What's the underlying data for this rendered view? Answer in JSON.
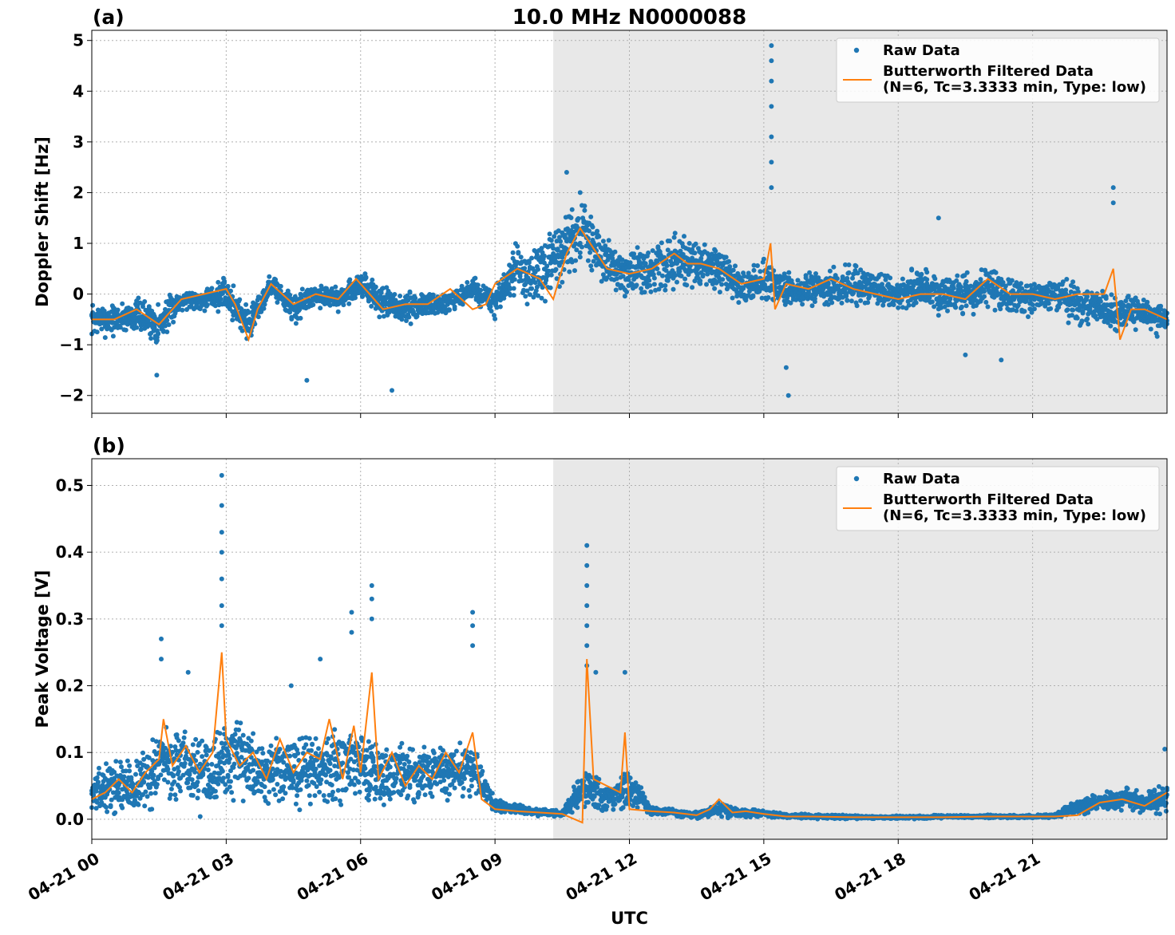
{
  "figure": {
    "title": "10.0 MHz N0000088",
    "xlabel": "UTC",
    "x_ticks": [
      "04-21 00",
      "04-21 03",
      "04-21 06",
      "04-21 09",
      "04-21 12",
      "04-21 15",
      "04-21 18",
      "04-21 21"
    ]
  },
  "colors": {
    "raw": "#1f77b4",
    "filtered": "#ff7f0e",
    "shade": "#e8e8e8"
  },
  "chart_data": [
    {
      "type": "scatter",
      "panel": "(a)",
      "ylabel": "Doppler Shift [Hz]",
      "xlim_hours": [
        0,
        24
      ],
      "ylim": [
        -2.35,
        5.2
      ],
      "yticks": [
        -2,
        -1,
        0,
        1,
        2,
        3,
        4,
        5
      ],
      "ytick_labels": [
        "−2",
        "−1",
        "0",
        "1",
        "2",
        "3",
        "4",
        "5"
      ],
      "shaded_region_hours": [
        10.3,
        24
      ],
      "grid": true,
      "legend_position": "top-right",
      "series": [
        {
          "name": "Raw Data",
          "kind": "points",
          "x": [
            0,
            0.5,
            1.0,
            1.5,
            2.0,
            2.5,
            3.0,
            3.5,
            4.0,
            4.5,
            5.0,
            5.5,
            6.0,
            6.5,
            7.0,
            7.5,
            8.0,
            8.5,
            9.0,
            9.5,
            10.0,
            10.5,
            11.0,
            11.5,
            12.0,
            12.5,
            13.0,
            13.5,
            14.0,
            14.5,
            15.0,
            15.5,
            16.0,
            16.5,
            17.0,
            17.5,
            18.0,
            18.5,
            19.0,
            19.5,
            20.0,
            20.5,
            21.0,
            21.5,
            22.0,
            22.5,
            23.0,
            23.5,
            24.0
          ],
          "y_center": [
            -0.5,
            -0.5,
            -0.4,
            -0.6,
            -0.1,
            -0.1,
            0.0,
            -0.6,
            0.2,
            -0.3,
            0.0,
            -0.1,
            0.2,
            -0.2,
            -0.3,
            -0.2,
            -0.2,
            0.1,
            -0.2,
            0.5,
            0.3,
            0.9,
            1.2,
            0.6,
            0.4,
            0.5,
            0.6,
            0.6,
            0.5,
            0.1,
            0.3,
            0.1,
            0.1,
            0.1,
            0.2,
            0.1,
            0.0,
            0.1,
            0.0,
            0.0,
            0.1,
            0.0,
            -0.1,
            0.0,
            -0.2,
            -0.3,
            -0.4,
            -0.4,
            -0.5
          ],
          "y_spread": [
            0.3,
            0.3,
            0.3,
            0.4,
            0.2,
            0.2,
            0.3,
            0.4,
            0.2,
            0.3,
            0.2,
            0.2,
            0.3,
            0.3,
            0.3,
            0.3,
            0.2,
            0.2,
            0.3,
            0.5,
            0.6,
            0.6,
            0.6,
            0.4,
            0.4,
            0.5,
            0.5,
            0.5,
            0.4,
            0.3,
            0.4,
            0.3,
            0.3,
            0.4,
            0.4,
            0.3,
            0.3,
            0.4,
            0.4,
            0.4,
            0.4,
            0.4,
            0.3,
            0.3,
            0.4,
            0.3,
            0.3,
            0.3,
            0.3
          ],
          "outliers": [
            [
              15.17,
              4.9
            ],
            [
              15.17,
              4.6
            ],
            [
              15.17,
              4.2
            ],
            [
              15.17,
              3.7
            ],
            [
              15.17,
              3.1
            ],
            [
              15.17,
              2.6
            ],
            [
              15.17,
              2.1
            ],
            [
              15.55,
              -2.0
            ],
            [
              15.5,
              -1.45
            ],
            [
              22.8,
              2.1
            ],
            [
              22.8,
              1.8
            ],
            [
              18.9,
              1.5
            ],
            [
              10.6,
              2.4
            ],
            [
              10.9,
              2.0
            ],
            [
              1.45,
              -1.6
            ],
            [
              4.8,
              -1.7
            ],
            [
              6.7,
              -1.9
            ],
            [
              19.5,
              -1.2
            ],
            [
              20.3,
              -1.3
            ]
          ]
        },
        {
          "name": "Butterworth Filtered Data\n(N=6, Tc=3.3333 min, Type: low)",
          "kind": "line",
          "x": [
            0,
            0.5,
            1.0,
            1.5,
            2.0,
            2.5,
            3.0,
            3.2,
            3.5,
            3.7,
            4.0,
            4.5,
            5.0,
            5.5,
            5.9,
            6.2,
            6.5,
            7.0,
            7.5,
            8.0,
            8.5,
            8.8,
            9.0,
            9.5,
            10.0,
            10.3,
            10.6,
            10.9,
            11.2,
            11.5,
            12.0,
            12.5,
            13.0,
            13.3,
            13.6,
            14.0,
            14.5,
            15.0,
            15.15,
            15.25,
            15.5,
            16.0,
            16.5,
            17.0,
            17.5,
            18.0,
            18.5,
            19.0,
            19.5,
            20.0,
            20.5,
            21.0,
            21.5,
            22.0,
            22.6,
            22.8,
            22.95,
            23.2,
            23.5,
            24.0
          ],
          "y": [
            -0.5,
            -0.5,
            -0.3,
            -0.6,
            -0.1,
            0.0,
            0.1,
            -0.2,
            -0.9,
            -0.3,
            0.2,
            -0.2,
            0.0,
            -0.1,
            0.3,
            0.0,
            -0.3,
            -0.2,
            -0.2,
            0.1,
            -0.3,
            -0.2,
            0.2,
            0.5,
            0.3,
            -0.1,
            0.8,
            1.3,
            0.9,
            0.5,
            0.4,
            0.5,
            0.8,
            0.6,
            0.6,
            0.5,
            0.2,
            0.3,
            1.0,
            -0.3,
            0.2,
            0.1,
            0.3,
            0.1,
            0.0,
            -0.1,
            0.0,
            0.0,
            -0.1,
            0.3,
            0.0,
            0.0,
            -0.1,
            0.0,
            0.0,
            0.5,
            -0.9,
            -0.3,
            -0.3,
            -0.5
          ]
        }
      ]
    },
    {
      "type": "scatter",
      "panel": "(b)",
      "ylabel": "Peak Voltage [V]",
      "xlim_hours": [
        0,
        24
      ],
      "ylim": [
        -0.03,
        0.54
      ],
      "yticks": [
        0.0,
        0.1,
        0.2,
        0.3,
        0.4,
        0.5
      ],
      "ytick_labels": [
        "0.0",
        "0.1",
        "0.2",
        "0.3",
        "0.4",
        "0.5"
      ],
      "shaded_region_hours": [
        10.3,
        24
      ],
      "grid": true,
      "legend_position": "top-right",
      "series": [
        {
          "name": "Raw Data",
          "kind": "points",
          "x": [
            0,
            0.5,
            1.0,
            1.5,
            2.0,
            2.5,
            3.0,
            3.5,
            4.0,
            4.5,
            5.0,
            5.5,
            6.0,
            6.5,
            7.0,
            7.5,
            8.0,
            8.5,
            9.0,
            9.5,
            10.0,
            10.5,
            11.0,
            11.5,
            12.0,
            12.5,
            13.0,
            13.5,
            14.0,
            14.5,
            15.0,
            15.5,
            16.0,
            16.5,
            17.0,
            17.5,
            18.0,
            18.5,
            19.0,
            19.5,
            20.0,
            20.5,
            21.0,
            21.5,
            22.0,
            22.5,
            23.0,
            23.5,
            24.0
          ],
          "y_center": [
            0.04,
            0.05,
            0.05,
            0.08,
            0.08,
            0.07,
            0.09,
            0.08,
            0.07,
            0.07,
            0.08,
            0.08,
            0.08,
            0.07,
            0.07,
            0.07,
            0.07,
            0.08,
            0.02,
            0.015,
            0.01,
            0.008,
            0.05,
            0.03,
            0.05,
            0.012,
            0.01,
            0.006,
            0.015,
            0.01,
            0.008,
            0.005,
            0.004,
            0.004,
            0.003,
            0.003,
            0.003,
            0.003,
            0.004,
            0.004,
            0.004,
            0.004,
            0.004,
            0.005,
            0.02,
            0.025,
            0.03,
            0.025,
            0.035
          ],
          "y_spread": [
            0.025,
            0.035,
            0.04,
            0.05,
            0.05,
            0.05,
            0.06,
            0.05,
            0.05,
            0.05,
            0.05,
            0.05,
            0.05,
            0.05,
            0.04,
            0.04,
            0.04,
            0.04,
            0.01,
            0.006,
            0.005,
            0.004,
            0.03,
            0.02,
            0.03,
            0.006,
            0.005,
            0.004,
            0.01,
            0.006,
            0.005,
            0.003,
            0.003,
            0.003,
            0.002,
            0.002,
            0.002,
            0.002,
            0.002,
            0.002,
            0.002,
            0.002,
            0.002,
            0.003,
            0.012,
            0.015,
            0.015,
            0.015,
            0.02
          ],
          "outliers": [
            [
              2.9,
              0.515
            ],
            [
              2.9,
              0.47
            ],
            [
              2.9,
              0.43
            ],
            [
              2.9,
              0.4
            ],
            [
              2.9,
              0.36
            ],
            [
              2.9,
              0.32
            ],
            [
              2.9,
              0.29
            ],
            [
              1.55,
              0.27
            ],
            [
              1.55,
              0.24
            ],
            [
              6.25,
              0.35
            ],
            [
              6.25,
              0.33
            ],
            [
              6.25,
              0.3
            ],
            [
              5.8,
              0.31
            ],
            [
              5.8,
              0.28
            ],
            [
              8.5,
              0.31
            ],
            [
              8.5,
              0.29
            ],
            [
              8.5,
              0.26
            ],
            [
              11.05,
              0.41
            ],
            [
              11.05,
              0.38
            ],
            [
              11.05,
              0.35
            ],
            [
              11.05,
              0.32
            ],
            [
              11.05,
              0.29
            ],
            [
              11.05,
              0.26
            ],
            [
              11.05,
              0.23
            ],
            [
              11.25,
              0.22
            ],
            [
              11.9,
              0.22
            ],
            [
              4.45,
              0.2
            ],
            [
              5.1,
              0.24
            ],
            [
              2.15,
              0.22
            ],
            [
              23.95,
              0.105
            ]
          ]
        },
        {
          "name": "Butterworth Filtered Data\n(N=6, Tc=3.3333 min, Type: low)",
          "kind": "line",
          "x": [
            0,
            0.3,
            0.6,
            0.9,
            1.2,
            1.5,
            1.6,
            1.8,
            2.1,
            2.4,
            2.7,
            2.9,
            3.0,
            3.3,
            3.6,
            3.9,
            4.2,
            4.5,
            4.8,
            5.1,
            5.3,
            5.6,
            5.85,
            6.0,
            6.25,
            6.4,
            6.7,
            7.0,
            7.3,
            7.6,
            7.9,
            8.2,
            8.5,
            8.7,
            9.0,
            9.5,
            10.0,
            10.5,
            10.95,
            11.05,
            11.2,
            11.5,
            11.8,
            11.9,
            12.0,
            12.5,
            13.0,
            13.5,
            13.8,
            14.0,
            14.3,
            14.6,
            15.0,
            15.5,
            16.0,
            17.0,
            18.0,
            19.0,
            20.0,
            21.0,
            21.5,
            22.0,
            22.5,
            23.0,
            23.5,
            24.0
          ],
          "y": [
            0.03,
            0.04,
            0.06,
            0.04,
            0.07,
            0.09,
            0.15,
            0.08,
            0.11,
            0.07,
            0.1,
            0.25,
            0.12,
            0.08,
            0.1,
            0.06,
            0.12,
            0.07,
            0.1,
            0.09,
            0.15,
            0.06,
            0.14,
            0.07,
            0.22,
            0.06,
            0.1,
            0.05,
            0.08,
            0.06,
            0.1,
            0.07,
            0.13,
            0.03,
            0.015,
            0.012,
            0.01,
            0.008,
            -0.005,
            0.24,
            0.06,
            0.05,
            0.04,
            0.13,
            0.015,
            0.012,
            0.01,
            0.006,
            0.015,
            0.03,
            0.01,
            0.012,
            0.008,
            0.004,
            0.004,
            0.003,
            0.003,
            0.003,
            0.004,
            0.004,
            0.004,
            0.006,
            0.025,
            0.03,
            0.02,
            0.04
          ]
        }
      ]
    }
  ]
}
